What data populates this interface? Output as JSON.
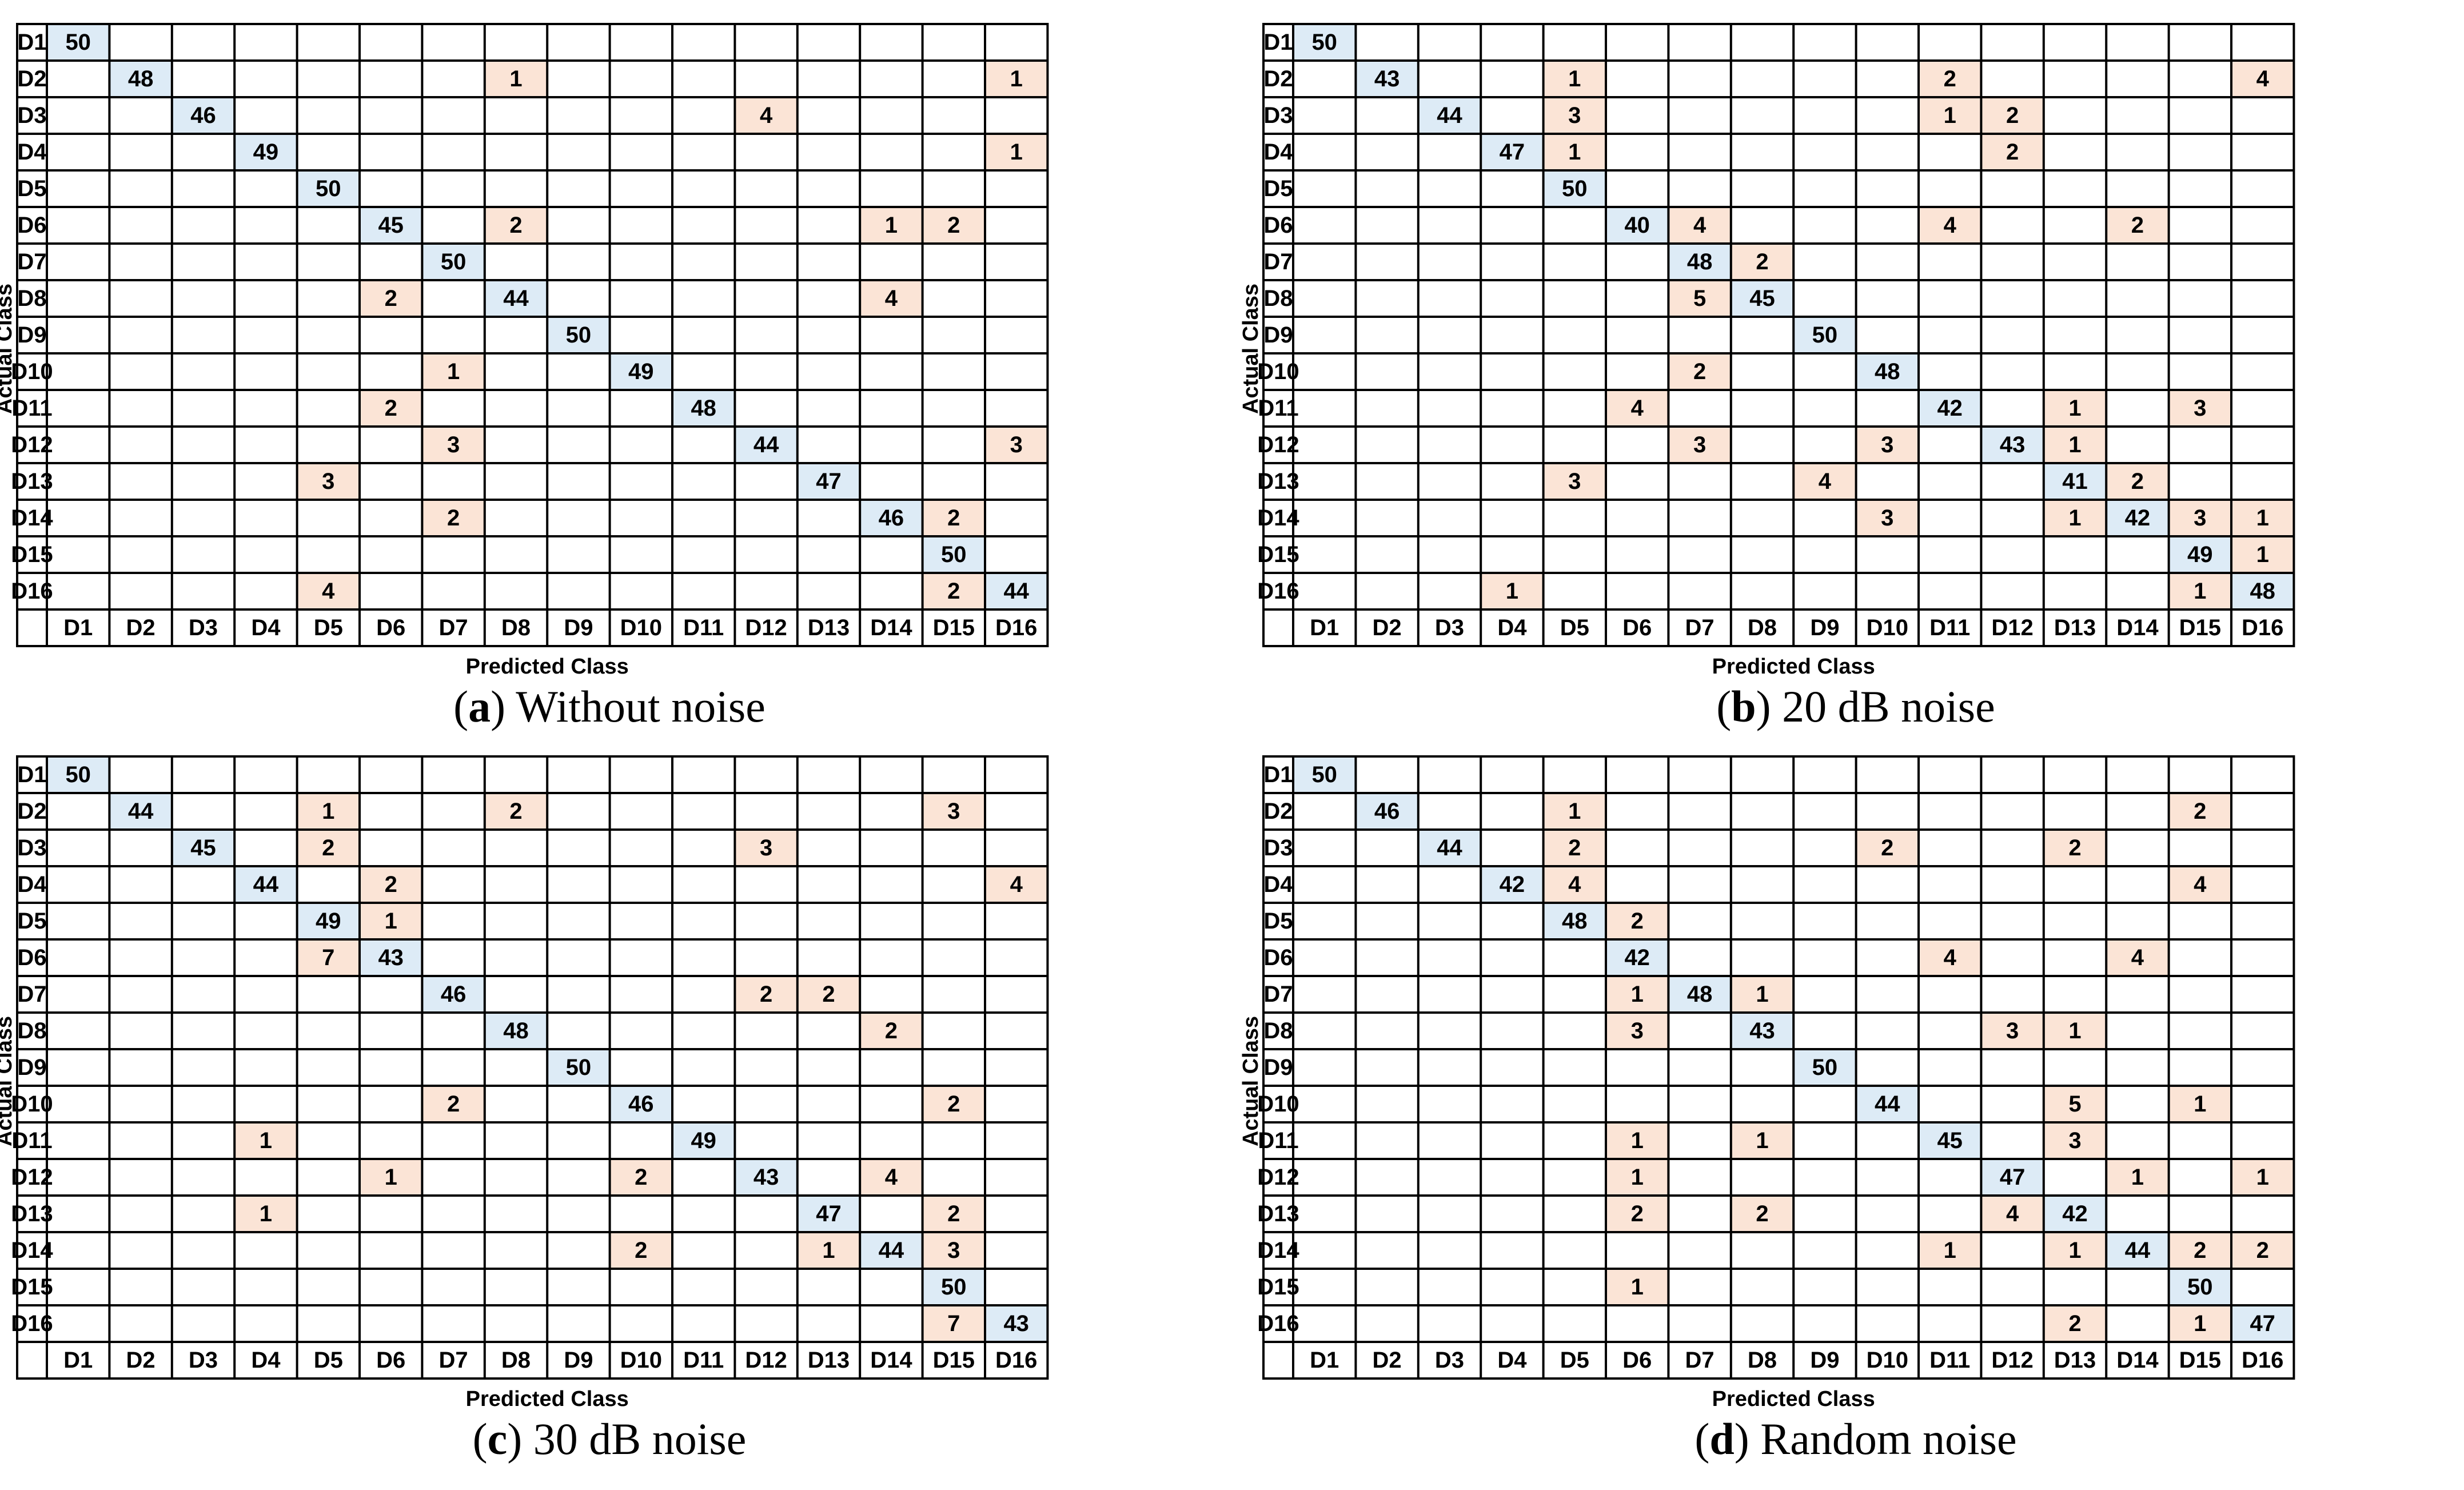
{
  "chart_data": [
    {
      "type": "heatmap",
      "caption_letter": "a",
      "caption_text": "Without noise",
      "xlabel": "Predicted Class",
      "ylabel": "Actual Class",
      "classes": [
        "D1",
        "D2",
        "D3",
        "D4",
        "D5",
        "D6",
        "D7",
        "D8",
        "D9",
        "D10",
        "D11",
        "D12",
        "D13",
        "D14",
        "D15",
        "D16"
      ],
      "matrix": [
        [
          50,
          0,
          0,
          0,
          0,
          0,
          0,
          0,
          0,
          0,
          0,
          0,
          0,
          0,
          0,
          0
        ],
        [
          0,
          48,
          0,
          0,
          0,
          0,
          0,
          1,
          0,
          0,
          0,
          0,
          0,
          0,
          0,
          1
        ],
        [
          0,
          0,
          46,
          0,
          0,
          0,
          0,
          0,
          0,
          0,
          0,
          4,
          0,
          0,
          0,
          0
        ],
        [
          0,
          0,
          0,
          49,
          0,
          0,
          0,
          0,
          0,
          0,
          0,
          0,
          0,
          0,
          0,
          1
        ],
        [
          0,
          0,
          0,
          0,
          50,
          0,
          0,
          0,
          0,
          0,
          0,
          0,
          0,
          0,
          0,
          0
        ],
        [
          0,
          0,
          0,
          0,
          0,
          45,
          0,
          2,
          0,
          0,
          0,
          0,
          0,
          1,
          2,
          0
        ],
        [
          0,
          0,
          0,
          0,
          0,
          0,
          50,
          0,
          0,
          0,
          0,
          0,
          0,
          0,
          0,
          0
        ],
        [
          0,
          0,
          0,
          0,
          0,
          2,
          0,
          44,
          0,
          0,
          0,
          0,
          0,
          4,
          0,
          0
        ],
        [
          0,
          0,
          0,
          0,
          0,
          0,
          0,
          0,
          50,
          0,
          0,
          0,
          0,
          0,
          0,
          0
        ],
        [
          0,
          0,
          0,
          0,
          0,
          0,
          1,
          0,
          0,
          49,
          0,
          0,
          0,
          0,
          0,
          0
        ],
        [
          0,
          0,
          0,
          0,
          0,
          2,
          0,
          0,
          0,
          0,
          48,
          0,
          0,
          0,
          0,
          0
        ],
        [
          0,
          0,
          0,
          0,
          0,
          0,
          3,
          0,
          0,
          0,
          0,
          44,
          0,
          0,
          0,
          3
        ],
        [
          0,
          0,
          0,
          0,
          3,
          0,
          0,
          0,
          0,
          0,
          0,
          0,
          47,
          0,
          0,
          0
        ],
        [
          0,
          0,
          0,
          0,
          0,
          0,
          2,
          0,
          0,
          0,
          0,
          0,
          0,
          46,
          2,
          0
        ],
        [
          0,
          0,
          0,
          0,
          0,
          0,
          0,
          0,
          0,
          0,
          0,
          0,
          0,
          0,
          50,
          0
        ],
        [
          0,
          0,
          0,
          0,
          4,
          0,
          0,
          0,
          0,
          0,
          0,
          0,
          0,
          0,
          2,
          44
        ]
      ]
    },
    {
      "type": "heatmap",
      "caption_letter": "b",
      "caption_text": "20 dB noise",
      "xlabel": "Predicted Class",
      "ylabel": "Actual Class",
      "classes": [
        "D1",
        "D2",
        "D3",
        "D4",
        "D5",
        "D6",
        "D7",
        "D8",
        "D9",
        "D10",
        "D11",
        "D12",
        "D13",
        "D14",
        "D15",
        "D16"
      ],
      "matrix": [
        [
          50,
          0,
          0,
          0,
          0,
          0,
          0,
          0,
          0,
          0,
          0,
          0,
          0,
          0,
          0,
          0
        ],
        [
          0,
          43,
          0,
          0,
          1,
          0,
          0,
          0,
          0,
          0,
          2,
          0,
          0,
          0,
          0,
          4
        ],
        [
          0,
          0,
          44,
          0,
          3,
          0,
          0,
          0,
          0,
          0,
          1,
          2,
          0,
          0,
          0,
          0
        ],
        [
          0,
          0,
          0,
          47,
          1,
          0,
          0,
          0,
          0,
          0,
          0,
          2,
          0,
          0,
          0,
          0
        ],
        [
          0,
          0,
          0,
          0,
          50,
          0,
          0,
          0,
          0,
          0,
          0,
          0,
          0,
          0,
          0,
          0
        ],
        [
          0,
          0,
          0,
          0,
          0,
          40,
          4,
          0,
          0,
          0,
          4,
          0,
          0,
          2,
          0,
          0
        ],
        [
          0,
          0,
          0,
          0,
          0,
          0,
          48,
          2,
          0,
          0,
          0,
          0,
          0,
          0,
          0,
          0
        ],
        [
          0,
          0,
          0,
          0,
          0,
          0,
          5,
          45,
          0,
          0,
          0,
          0,
          0,
          0,
          0,
          0
        ],
        [
          0,
          0,
          0,
          0,
          0,
          0,
          0,
          0,
          50,
          0,
          0,
          0,
          0,
          0,
          0,
          0
        ],
        [
          0,
          0,
          0,
          0,
          0,
          0,
          2,
          0,
          0,
          48,
          0,
          0,
          0,
          0,
          0,
          0
        ],
        [
          0,
          0,
          0,
          0,
          0,
          4,
          0,
          0,
          0,
          0,
          42,
          0,
          1,
          0,
          3,
          0
        ],
        [
          0,
          0,
          0,
          0,
          0,
          0,
          3,
          0,
          0,
          3,
          0,
          43,
          1,
          0,
          0,
          0
        ],
        [
          0,
          0,
          0,
          0,
          3,
          0,
          0,
          0,
          4,
          0,
          0,
          0,
          41,
          2,
          0,
          0
        ],
        [
          0,
          0,
          0,
          0,
          0,
          0,
          0,
          0,
          0,
          3,
          0,
          0,
          1,
          42,
          3,
          1
        ],
        [
          0,
          0,
          0,
          0,
          0,
          0,
          0,
          0,
          0,
          0,
          0,
          0,
          0,
          0,
          49,
          1
        ],
        [
          0,
          0,
          0,
          1,
          0,
          0,
          0,
          0,
          0,
          0,
          0,
          0,
          0,
          0,
          1,
          48
        ]
      ]
    },
    {
      "type": "heatmap",
      "caption_letter": "c",
      "caption_text": "30 dB noise",
      "xlabel": "Predicted Class",
      "ylabel": "Actual Class",
      "classes": [
        "D1",
        "D2",
        "D3",
        "D4",
        "D5",
        "D6",
        "D7",
        "D8",
        "D9",
        "D10",
        "D11",
        "D12",
        "D13",
        "D14",
        "D15",
        "D16"
      ],
      "matrix": [
        [
          50,
          0,
          0,
          0,
          0,
          0,
          0,
          0,
          0,
          0,
          0,
          0,
          0,
          0,
          0,
          0
        ],
        [
          0,
          44,
          0,
          0,
          1,
          0,
          0,
          2,
          0,
          0,
          0,
          0,
          0,
          0,
          3,
          0
        ],
        [
          0,
          0,
          45,
          0,
          2,
          0,
          0,
          0,
          0,
          0,
          0,
          3,
          0,
          0,
          0,
          0
        ],
        [
          0,
          0,
          0,
          44,
          0,
          2,
          0,
          0,
          0,
          0,
          0,
          0,
          0,
          0,
          0,
          4
        ],
        [
          0,
          0,
          0,
          0,
          49,
          1,
          0,
          0,
          0,
          0,
          0,
          0,
          0,
          0,
          0,
          0
        ],
        [
          0,
          0,
          0,
          0,
          7,
          43,
          0,
          0,
          0,
          0,
          0,
          0,
          0,
          0,
          0,
          0
        ],
        [
          0,
          0,
          0,
          0,
          0,
          0,
          46,
          0,
          0,
          0,
          0,
          2,
          2,
          0,
          0,
          0
        ],
        [
          0,
          0,
          0,
          0,
          0,
          0,
          0,
          48,
          0,
          0,
          0,
          0,
          0,
          2,
          0,
          0
        ],
        [
          0,
          0,
          0,
          0,
          0,
          0,
          0,
          0,
          50,
          0,
          0,
          0,
          0,
          0,
          0,
          0
        ],
        [
          0,
          0,
          0,
          0,
          0,
          0,
          2,
          0,
          0,
          46,
          0,
          0,
          0,
          0,
          2,
          0
        ],
        [
          0,
          0,
          0,
          1,
          0,
          0,
          0,
          0,
          0,
          0,
          49,
          0,
          0,
          0,
          0,
          0
        ],
        [
          0,
          0,
          0,
          0,
          0,
          1,
          0,
          0,
          0,
          2,
          0,
          43,
          0,
          4,
          0,
          0
        ],
        [
          0,
          0,
          0,
          1,
          0,
          0,
          0,
          0,
          0,
          0,
          0,
          0,
          47,
          0,
          2,
          0
        ],
        [
          0,
          0,
          0,
          0,
          0,
          0,
          0,
          0,
          0,
          2,
          0,
          0,
          1,
          44,
          3,
          0
        ],
        [
          0,
          0,
          0,
          0,
          0,
          0,
          0,
          0,
          0,
          0,
          0,
          0,
          0,
          0,
          50,
          0
        ],
        [
          0,
          0,
          0,
          0,
          0,
          0,
          0,
          0,
          0,
          0,
          0,
          0,
          0,
          0,
          7,
          43
        ]
      ]
    },
    {
      "type": "heatmap",
      "caption_letter": "d",
      "caption_text": "Random noise",
      "xlabel": "Predicted Class",
      "ylabel": "Actual Class",
      "classes": [
        "D1",
        "D2",
        "D3",
        "D4",
        "D5",
        "D6",
        "D7",
        "D8",
        "D9",
        "D10",
        "D11",
        "D12",
        "D13",
        "D14",
        "D15",
        "D16"
      ],
      "matrix": [
        [
          50,
          0,
          0,
          0,
          0,
          0,
          0,
          0,
          0,
          0,
          0,
          0,
          0,
          0,
          0,
          0
        ],
        [
          0,
          46,
          0,
          0,
          1,
          0,
          0,
          0,
          0,
          0,
          0,
          0,
          0,
          0,
          2,
          0
        ],
        [
          0,
          0,
          44,
          0,
          2,
          0,
          0,
          0,
          0,
          2,
          0,
          0,
          2,
          0,
          0,
          0
        ],
        [
          0,
          0,
          0,
          42,
          4,
          0,
          0,
          0,
          0,
          0,
          0,
          0,
          0,
          0,
          4,
          0
        ],
        [
          0,
          0,
          0,
          0,
          48,
          2,
          0,
          0,
          0,
          0,
          0,
          0,
          0,
          0,
          0,
          0
        ],
        [
          0,
          0,
          0,
          0,
          0,
          42,
          0,
          0,
          0,
          0,
          4,
          0,
          0,
          4,
          0,
          0
        ],
        [
          0,
          0,
          0,
          0,
          0,
          1,
          48,
          1,
          0,
          0,
          0,
          0,
          0,
          0,
          0,
          0
        ],
        [
          0,
          0,
          0,
          0,
          0,
          3,
          0,
          43,
          0,
          0,
          0,
          3,
          1,
          0,
          0,
          0
        ],
        [
          0,
          0,
          0,
          0,
          0,
          0,
          0,
          0,
          50,
          0,
          0,
          0,
          0,
          0,
          0,
          0
        ],
        [
          0,
          0,
          0,
          0,
          0,
          0,
          0,
          0,
          0,
          44,
          0,
          0,
          5,
          0,
          1,
          0
        ],
        [
          0,
          0,
          0,
          0,
          0,
          1,
          0,
          1,
          0,
          0,
          45,
          0,
          3,
          0,
          0,
          0
        ],
        [
          0,
          0,
          0,
          0,
          0,
          1,
          0,
          0,
          0,
          0,
          0,
          47,
          0,
          1,
          0,
          1
        ],
        [
          0,
          0,
          0,
          0,
          0,
          2,
          0,
          2,
          0,
          0,
          0,
          4,
          42,
          0,
          0,
          0
        ],
        [
          0,
          0,
          0,
          0,
          0,
          0,
          0,
          0,
          0,
          0,
          1,
          0,
          1,
          44,
          2,
          2
        ],
        [
          0,
          0,
          0,
          0,
          0,
          1,
          0,
          0,
          0,
          0,
          0,
          0,
          0,
          0,
          50,
          0
        ],
        [
          0,
          0,
          0,
          0,
          0,
          0,
          0,
          0,
          0,
          0,
          0,
          0,
          2,
          0,
          1,
          47
        ]
      ]
    }
  ],
  "colors": {
    "diagonal": "#ddebf6",
    "off_diagonal": "#fbe4d6",
    "grid": "#000000",
    "text": "#000000"
  }
}
